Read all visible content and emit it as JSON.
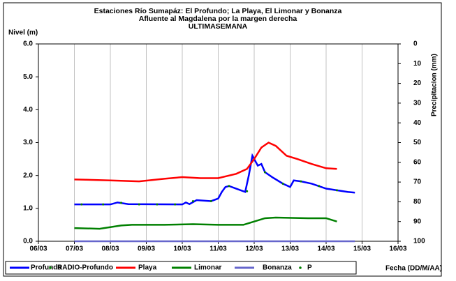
{
  "chart_data": {
    "type": "line",
    "title": "Estaciones Río Sumapáz: El Profundo; La Playa, El Limonar y Bonanza",
    "subtitle": "Afluente al Magdalena por la margen derecha",
    "subtitle2": "ULTIMASEMANA",
    "ylabel": "Nivel (m)",
    "y2label": "Precipitacion (mm)",
    "xlabel": "Fecha (DD/M/AA)",
    "xlim": [
      6,
      16
    ],
    "xticks": [
      {
        "value": 6,
        "label": "06/03"
      },
      {
        "value": 7,
        "label": "07/03"
      },
      {
        "value": 8,
        "label": "08/03"
      },
      {
        "value": 9,
        "label": "09/03"
      },
      {
        "value": 10,
        "label": "10/03"
      },
      {
        "value": 11,
        "label": "11/03"
      },
      {
        "value": 12,
        "label": "12/03"
      },
      {
        "value": 13,
        "label": "13/03"
      },
      {
        "value": 14,
        "label": "14/03"
      },
      {
        "value": 15,
        "label": "15/03"
      },
      {
        "value": 16,
        "label": "16/03"
      }
    ],
    "ylim": [
      0,
      6
    ],
    "yticks": [
      {
        "value": 0,
        "label": "0.0"
      },
      {
        "value": 1,
        "label": "1.0"
      },
      {
        "value": 2,
        "label": "2.0"
      },
      {
        "value": 3,
        "label": "3.0"
      },
      {
        "value": 4,
        "label": "4.0"
      },
      {
        "value": 5,
        "label": "5.0"
      },
      {
        "value": 6,
        "label": "6.0"
      }
    ],
    "y2lim": [
      100,
      0
    ],
    "y2ticks": [
      0,
      10,
      20,
      30,
      40,
      50,
      60,
      70,
      80,
      90,
      100
    ],
    "grid": true,
    "series": [
      {
        "name": "Profundo",
        "color": "#0000ff",
        "style": "line",
        "x": [
          7.0,
          8.0,
          8.2,
          8.5,
          10.0,
          10.1,
          10.2,
          10.4,
          10.8,
          11.0,
          11.1,
          11.2,
          11.3,
          11.5,
          11.75,
          11.85,
          11.95,
          12.1,
          12.2,
          12.3,
          12.5,
          12.8,
          13.0,
          13.1,
          13.3,
          13.6,
          14.0,
          14.3,
          14.6,
          14.8
        ],
        "values": [
          1.12,
          1.12,
          1.18,
          1.13,
          1.12,
          1.18,
          1.13,
          1.25,
          1.22,
          1.3,
          1.5,
          1.65,
          1.68,
          1.6,
          1.5,
          2.0,
          2.6,
          2.3,
          2.35,
          2.1,
          1.95,
          1.75,
          1.65,
          1.85,
          1.82,
          1.75,
          1.6,
          1.55,
          1.5,
          1.48
        ]
      },
      {
        "name": "RADIO-Profundo",
        "color": "#008000",
        "style": "dots",
        "x": [
          7.2,
          7.8,
          8.3,
          8.8,
          9.3,
          9.8,
          10.3,
          10.8,
          11.3,
          11.8,
          12.3,
          12.8,
          13.3,
          13.8,
          14.3
        ],
        "values": [
          1.12,
          1.12,
          1.17,
          1.12,
          1.12,
          1.12,
          1.22,
          1.22,
          1.68,
          1.52,
          2.1,
          1.75,
          1.82,
          1.68,
          1.55
        ]
      },
      {
        "name": "Playa",
        "color": "#ff0000",
        "style": "line",
        "x": [
          7.0,
          8.0,
          8.8,
          9.5,
          10.0,
          10.5,
          11.0,
          11.5,
          11.8,
          12.0,
          12.2,
          12.4,
          12.6,
          12.9,
          13.2,
          13.6,
          14.0,
          14.3
        ],
        "values": [
          1.88,
          1.85,
          1.82,
          1.9,
          1.95,
          1.92,
          1.92,
          2.05,
          2.2,
          2.5,
          2.85,
          3.0,
          2.9,
          2.6,
          2.5,
          2.35,
          2.22,
          2.2
        ]
      },
      {
        "name": "Limonar",
        "color": "#008000",
        "style": "line",
        "x": [
          7.0,
          7.7,
          8.3,
          8.6,
          9.5,
          10.3,
          11.0,
          11.7,
          12.0,
          12.3,
          12.6,
          13.5,
          14.0,
          14.3
        ],
        "values": [
          0.4,
          0.38,
          0.48,
          0.5,
          0.5,
          0.52,
          0.5,
          0.5,
          0.6,
          0.7,
          0.72,
          0.7,
          0.7,
          0.6
        ]
      },
      {
        "name": "Bonanza",
        "color": "#6666cc",
        "style": "line",
        "x": [
          7.0,
          14.8
        ],
        "values": [
          0,
          0
        ]
      },
      {
        "name": "P",
        "color": "#008000",
        "style": "dots",
        "axis": "y2",
        "x": [],
        "values": []
      }
    ]
  }
}
